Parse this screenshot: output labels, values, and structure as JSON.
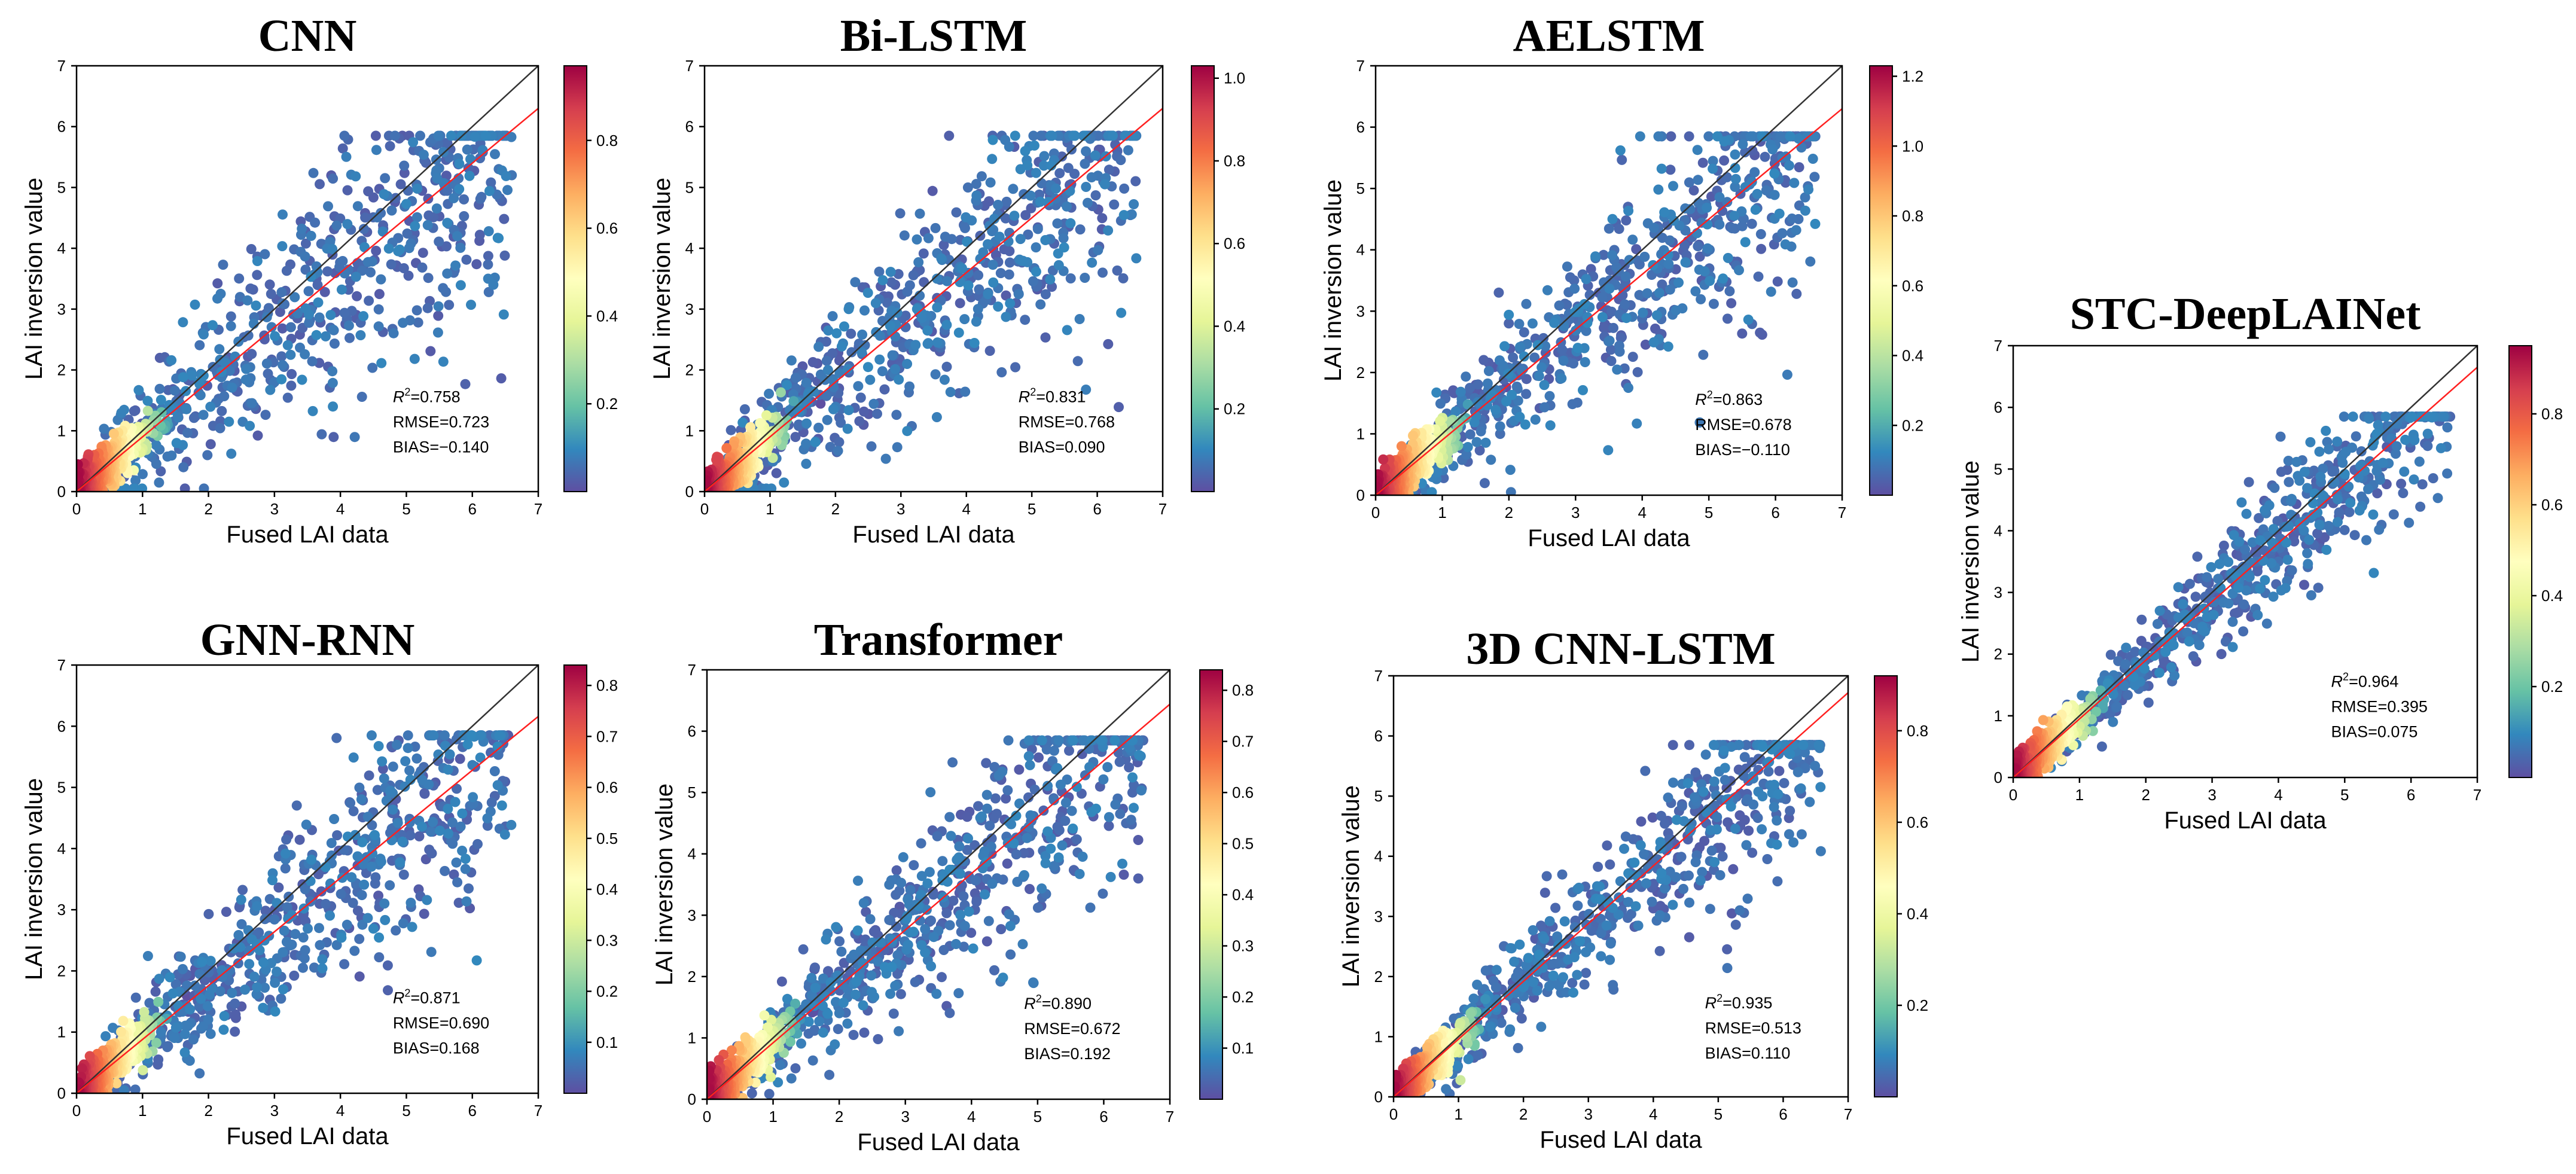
{
  "chart_data": [
    {
      "type": "scatter",
      "title": "CNN",
      "xlabel": "Fused LAI data",
      "ylabel": "LAI inversion value",
      "xlim": [
        0,
        7
      ],
      "ylim": [
        0,
        7
      ],
      "xticks": [
        "0",
        "1",
        "2",
        "3",
        "4",
        "5",
        "6",
        "7"
      ],
      "yticks": [
        "0",
        "1",
        "2",
        "3",
        "4",
        "5",
        "6",
        "7"
      ],
      "fit_line": {
        "slope": 0.9,
        "intercept": 0.0
      },
      "identity_line": true,
      "stats": {
        "r2_label": "R",
        "r2_sup": "2",
        "r2_value": "=0.758",
        "rmse": "RMSE=0.723",
        "bias": "BIAS=−0.140"
      },
      "colorbar": {
        "min": 0.0,
        "max": 0.97,
        "ticks": [
          "0.2",
          "0.4",
          "0.6",
          "0.8"
        ]
      }
    },
    {
      "type": "scatter",
      "title": "Bi-LSTM",
      "xlabel": "Fused LAI data",
      "ylabel": "LAI inversion value",
      "xlim": [
        0,
        7
      ],
      "ylim": [
        0,
        7
      ],
      "xticks": [
        "0",
        "1",
        "2",
        "3",
        "4",
        "5",
        "6",
        "7"
      ],
      "yticks": [
        "0",
        "1",
        "2",
        "3",
        "4",
        "5",
        "6",
        "7"
      ],
      "fit_line": {
        "slope": 0.9,
        "intercept": 0.0
      },
      "identity_line": true,
      "stats": {
        "r2_label": "R",
        "r2_sup": "2",
        "r2_value": "=0.831",
        "rmse": "RMSE=0.768",
        "bias": "BIAS=0.090"
      },
      "colorbar": {
        "min": 0.0,
        "max": 1.03,
        "ticks": [
          "0.2",
          "0.4",
          "0.6",
          "0.8",
          "1.0"
        ]
      }
    },
    {
      "type": "scatter",
      "title": "AELSTM",
      "xlabel": "Fused LAI data",
      "ylabel": "LAI inversion value",
      "xlim": [
        0,
        7
      ],
      "ylim": [
        0,
        7
      ],
      "xticks": [
        "0",
        "1",
        "2",
        "3",
        "4",
        "5",
        "6",
        "7"
      ],
      "yticks": [
        "0",
        "1",
        "2",
        "3",
        "4",
        "5",
        "6",
        "7"
      ],
      "fit_line": {
        "slope": 0.9,
        "intercept": 0.0
      },
      "identity_line": true,
      "stats": {
        "r2_label": "R",
        "r2_sup": "2",
        "r2_value": "=0.863",
        "rmse": "RMSE=0.678",
        "bias": "BIAS=−0.110"
      },
      "colorbar": {
        "min": 0.0,
        "max": 1.23,
        "ticks": [
          "0.2",
          "0.4",
          "0.6",
          "0.8",
          "1.0",
          "1.2"
        ]
      }
    },
    {
      "type": "scatter",
      "title": "STC-DeepLAINet",
      "xlabel": "Fused LAI data",
      "ylabel": "LAI inversion value",
      "xlim": [
        0,
        7
      ],
      "ylim": [
        0,
        7
      ],
      "xticks": [
        "0",
        "1",
        "2",
        "3",
        "4",
        "5",
        "6",
        "7"
      ],
      "yticks": [
        "0",
        "1",
        "2",
        "3",
        "4",
        "5",
        "6",
        "7"
      ],
      "fit_line": {
        "slope": 0.95,
        "intercept": 0.0
      },
      "identity_line": true,
      "stats": {
        "r2_label": "R",
        "r2_sup": "2",
        "r2_value": "=0.964",
        "rmse": "RMSE=0.395",
        "bias": "BIAS=0.075"
      },
      "colorbar": {
        "min": 0.0,
        "max": 0.95,
        "ticks": [
          "0.2",
          "0.4",
          "0.6",
          "0.8"
        ]
      }
    },
    {
      "type": "scatter",
      "title": "GNN-RNN",
      "xlabel": "Fused LAI data",
      "ylabel": "LAI inversion value",
      "xlim": [
        0,
        7
      ],
      "ylim": [
        0,
        7
      ],
      "xticks": [
        "0",
        "1",
        "2",
        "3",
        "4",
        "5",
        "6",
        "7"
      ],
      "yticks": [
        "0",
        "1",
        "2",
        "3",
        "4",
        "5",
        "6",
        "7"
      ],
      "fit_line": {
        "slope": 0.88,
        "intercept": 0.0
      },
      "identity_line": true,
      "stats": {
        "r2_label": "R",
        "r2_sup": "2",
        "r2_value": "=0.871",
        "rmse": "RMSE=0.690",
        "bias": "BIAS=0.168"
      },
      "colorbar": {
        "min": 0.0,
        "max": 0.84,
        "ticks": [
          "0.1",
          "0.2",
          "0.3",
          "0.4",
          "0.5",
          "0.6",
          "0.7",
          "0.8"
        ]
      }
    },
    {
      "type": "scatter",
      "title": "Transformer",
      "xlabel": "Fused LAI data",
      "ylabel": "LAI inversion value",
      "xlim": [
        0,
        7
      ],
      "ylim": [
        0,
        7
      ],
      "xticks": [
        "0",
        "1",
        "2",
        "3",
        "4",
        "5",
        "6",
        "7"
      ],
      "yticks": [
        "0",
        "1",
        "2",
        "3",
        "4",
        "5",
        "6",
        "7"
      ],
      "fit_line": {
        "slope": 0.92,
        "intercept": 0.0
      },
      "identity_line": true,
      "stats": {
        "r2_label": "R",
        "r2_sup": "2",
        "r2_value": "=0.890",
        "rmse": "RMSE=0.672",
        "bias": "BIAS=0.192"
      },
      "colorbar": {
        "min": 0.0,
        "max": 0.84,
        "ticks": [
          "0.1",
          "0.2",
          "0.3",
          "0.4",
          "0.5",
          "0.6",
          "0.7",
          "0.8"
        ]
      }
    },
    {
      "type": "scatter",
      "title": "3D CNN-LSTM",
      "xlabel": "Fused LAI data",
      "ylabel": "LAI inversion value",
      "xlim": [
        0,
        7
      ],
      "ylim": [
        0,
        7
      ],
      "xticks": [
        "0",
        "1",
        "2",
        "3",
        "4",
        "5",
        "6",
        "7"
      ],
      "yticks": [
        "0",
        "1",
        "2",
        "3",
        "4",
        "5",
        "6",
        "7"
      ],
      "fit_line": {
        "slope": 0.96,
        "intercept": 0.0
      },
      "identity_line": true,
      "stats": {
        "r2_label": "R",
        "r2_sup": "2",
        "r2_value": "=0.935",
        "rmse": "RMSE=0.513",
        "bias": "BIAS=0.110"
      },
      "colorbar": {
        "min": 0.0,
        "max": 0.92,
        "ticks": [
          "0.2",
          "0.4",
          "0.6",
          "0.8"
        ]
      }
    }
  ],
  "colors": {
    "fit_line": "#ff2020",
    "identity_line": "#333333",
    "point_low": "#5e4fa2",
    "colormap": [
      "#5e4fa2",
      "#3288bd",
      "#66c2a5",
      "#abdda4",
      "#e6f598",
      "#ffffbf",
      "#fee08b",
      "#fdae61",
      "#f46d43",
      "#d53e4f",
      "#9e0142"
    ]
  }
}
